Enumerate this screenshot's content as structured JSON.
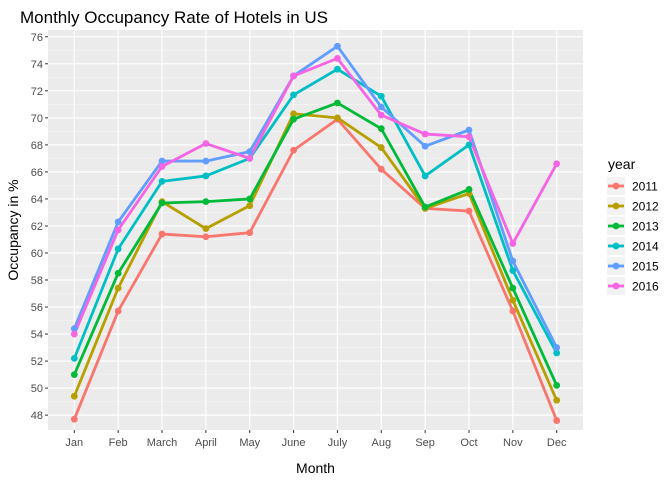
{
  "chart_data": {
    "type": "line",
    "title": "Monthly Occupancy Rate of Hotels in US",
    "xlabel": "Month",
    "ylabel": "Occupancy in %",
    "categories": [
      "Jan",
      "Feb",
      "March",
      "April",
      "May",
      "June",
      "July",
      "Aug",
      "Sep",
      "Oct",
      "Nov",
      "Dec"
    ],
    "ylim": [
      46.9,
      76.5
    ],
    "yticks": [
      48,
      50,
      52,
      54,
      56,
      58,
      60,
      62,
      64,
      66,
      68,
      70,
      72,
      74,
      76
    ],
    "grid": true,
    "legend": {
      "title": "year",
      "position": "right"
    },
    "series": [
      {
        "name": "2011",
        "color": "#F8766D",
        "values": [
          47.7,
          55.7,
          61.4,
          61.2,
          61.5,
          67.6,
          69.9,
          66.2,
          63.3,
          63.1,
          55.7,
          47.6
        ]
      },
      {
        "name": "2012",
        "color": "#B79F00",
        "values": [
          49.4,
          57.4,
          63.8,
          61.8,
          63.5,
          70.3,
          70.0,
          67.8,
          63.3,
          64.4,
          56.5,
          49.1
        ]
      },
      {
        "name": "2013",
        "color": "#00BA38",
        "values": [
          51.0,
          58.5,
          63.7,
          63.8,
          64.0,
          69.9,
          71.1,
          69.2,
          63.4,
          64.7,
          57.4,
          50.2
        ]
      },
      {
        "name": "2014",
        "color": "#00BFC4",
        "values": [
          52.2,
          60.3,
          65.3,
          65.7,
          67.0,
          71.7,
          73.6,
          71.6,
          65.7,
          68.0,
          58.7,
          52.6
        ]
      },
      {
        "name": "2015",
        "color": "#619CFF",
        "values": [
          54.4,
          62.3,
          66.8,
          66.8,
          67.5,
          73.1,
          75.3,
          70.8,
          67.9,
          69.1,
          59.4,
          53.0
        ]
      },
      {
        "name": "2016",
        "color": "#F564E3",
        "values": [
          54.0,
          61.7,
          66.4,
          68.1,
          67.0,
          73.1,
          74.4,
          70.2,
          68.8,
          68.6,
          60.7,
          66.6
        ]
      }
    ]
  }
}
